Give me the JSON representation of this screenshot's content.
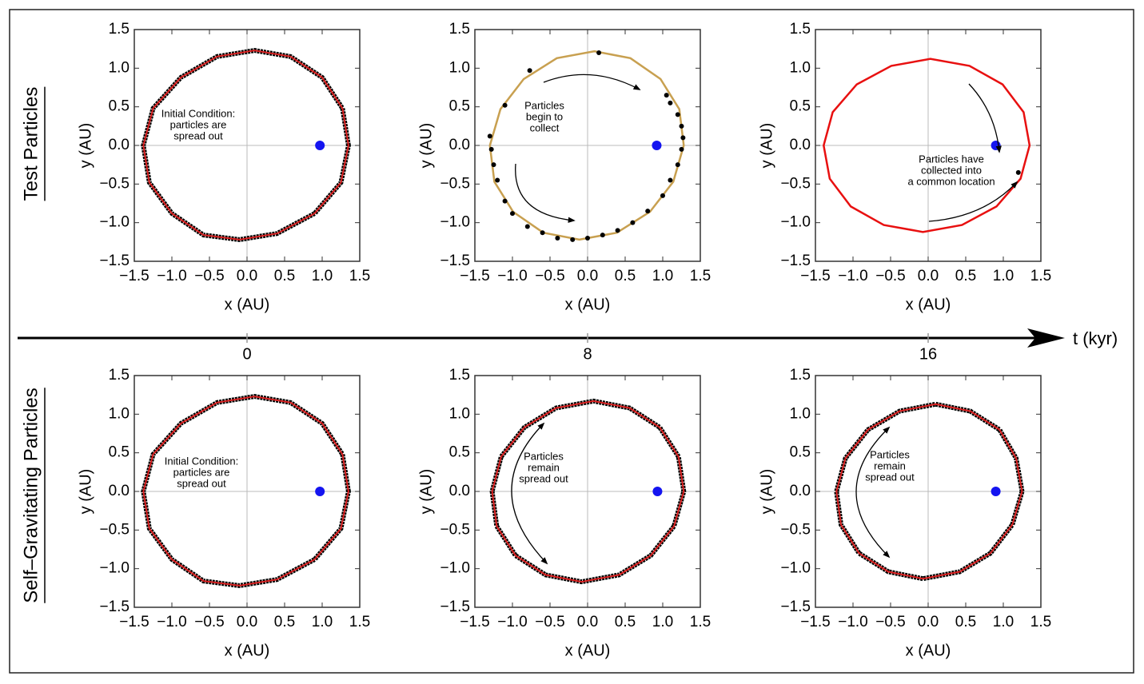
{
  "chart_data": [
    {
      "type": "orbit",
      "xlabel": "x (AU)",
      "ylabel": "y (AU)",
      "xlim": [
        -1.5,
        1.5
      ],
      "ylim": [
        -1.5,
        1.5
      ],
      "xticks": [
        {
          "value": -1.5,
          "label": "−1.5"
        },
        {
          "value": -1.0,
          "label": "−1.0"
        },
        {
          "value": -0.5,
          "label": "−0.5"
        },
        {
          "value": 0,
          "label": "0.0"
        },
        0.5,
        {
          "value": 1.0,
          "label": "1.0"
        },
        1.5
      ],
      "yticks": [
        {
          "value": -1.5,
          "label": "−1.5"
        },
        {
          "value": -1.0,
          "label": "−1.0"
        },
        {
          "value": -0.5,
          "label": "−0.5"
        },
        {
          "value": 0,
          "label": "0.0"
        },
        0.5,
        {
          "value": 1.0,
          "label": "1.0"
        },
        1.5
      ],
      "annotation": [
        "Initial Condition:",
        "particles are",
        "spread out"
      ],
      "series": [
        {
          "mode": "line",
          "color": "#d81e1e",
          "edgecolor": "#000000",
          "x": [
            1.35,
            1.27,
            1.0,
            0.58,
            0.1,
            -0.4,
            -0.88,
            -1.25,
            -1.38,
            -1.3,
            -1.0,
            -0.58,
            -0.1,
            0.4,
            0.9,
            1.25
          ],
          "values": [
            0,
            0.48,
            0.88,
            1.15,
            1.23,
            1.15,
            0.88,
            0.48,
            0,
            -0.48,
            -0.88,
            -1.16,
            -1.22,
            -1.14,
            -0.88,
            -0.48
          ]
        },
        {
          "mode": "points",
          "color": "#1414f0",
          "x": [
            0.97
          ],
          "values": [
            0
          ]
        }
      ]
    },
    {
      "type": "orbit",
      "xlabel": "x (AU)",
      "ylabel": "y (AU)",
      "xlim": [
        -1.5,
        1.5
      ],
      "ylim": [
        -1.5,
        1.5
      ],
      "xticks": [
        {
          "value": -1.5,
          "label": "−1.5"
        },
        {
          "value": -1.0,
          "label": "−1.0"
        },
        {
          "value": -0.5,
          "label": "−0.5"
        },
        {
          "value": 0,
          "label": "0.0"
        },
        0.5,
        {
          "value": 1.0,
          "label": "1.0"
        },
        1.5
      ],
      "yticks": [
        {
          "value": -1.5,
          "label": "−1.5"
        },
        {
          "value": -1.0,
          "label": "−1.0"
        },
        {
          "value": -0.5,
          "label": "−0.5"
        },
        {
          "value": 0,
          "label": "0.0"
        },
        0.5,
        {
          "value": 1.0,
          "label": "1.0"
        },
        1.5
      ],
      "annotation": [
        "Particles",
        "begin to",
        "collect"
      ],
      "series": [
        {
          "mode": "line",
          "color": "#c8a050",
          "x": [
            1.28,
            1.22,
            0.97,
            0.57,
            0.09,
            -0.41,
            -0.85,
            -1.16,
            -1.3,
            -1.24,
            -0.99,
            -0.59,
            -0.11,
            0.39,
            0.83,
            1.14
          ],
          "values": [
            0,
            0.47,
            0.86,
            1.13,
            1.22,
            1.13,
            0.86,
            0.47,
            0,
            -0.47,
            -0.86,
            -1.13,
            -1.22,
            -1.13,
            -0.86,
            -0.47
          ]
        },
        {
          "mode": "points",
          "color": "#000000",
          "x": [
            0.15,
            -0.77,
            -1.1,
            -1.3,
            -1.28,
            -1.25,
            -1.2,
            -1.1,
            -1.0,
            -0.8,
            -0.6,
            -0.4,
            -0.2,
            0.0,
            0.2,
            0.4,
            0.6,
            0.8,
            1.0,
            1.1,
            1.2,
            1.25,
            1.27,
            1.25,
            1.2,
            1.1,
            1.05
          ],
          "values": [
            1.2,
            0.97,
            0.52,
            0.12,
            -0.05,
            -0.25,
            -0.45,
            -0.72,
            -0.88,
            -1.05,
            -1.13,
            -1.2,
            -1.22,
            -1.2,
            -1.16,
            -1.1,
            -1.0,
            -0.85,
            -0.65,
            -0.45,
            -0.25,
            -0.05,
            0.1,
            0.25,
            0.4,
            0.55,
            0.65
          ]
        },
        {
          "mode": "points",
          "color": "#1414f0",
          "x": [
            0.92
          ],
          "values": [
            0
          ]
        }
      ]
    },
    {
      "type": "orbit",
      "xlabel": "x (AU)",
      "ylabel": "y (AU)",
      "xlim": [
        -1.5,
        1.5
      ],
      "ylim": [
        -1.5,
        1.5
      ],
      "xticks": [
        {
          "value": -1.5,
          "label": "−1.5"
        },
        {
          "value": -1.0,
          "label": "−1.0"
        },
        {
          "value": -0.5,
          "label": "−0.5"
        },
        {
          "value": 0,
          "label": "0.0"
        },
        0.5,
        {
          "value": 1.0,
          "label": "1.0"
        },
        1.5
      ],
      "yticks": [
        {
          "value": -1.5,
          "label": "−1.5"
        },
        {
          "value": -1.0,
          "label": "−1.0"
        },
        {
          "value": -0.5,
          "label": "−0.5"
        },
        {
          "value": 0,
          "label": "0.0"
        },
        0.5,
        {
          "value": 1.0,
          "label": "1.0"
        },
        1.5
      ],
      "annotation": [
        "Particles have",
        "collected into",
        "a common location"
      ],
      "series": [
        {
          "mode": "line",
          "color": "#e81010",
          "x": [
            1.35,
            1.27,
            0.99,
            0.55,
            0.03,
            -0.49,
            -0.95,
            -1.27,
            -1.39,
            -1.31,
            -1.03,
            -0.59,
            -0.07,
            0.45,
            0.91,
            1.23
          ],
          "values": [
            0,
            0.43,
            0.79,
            1.03,
            1.12,
            1.03,
            0.79,
            0.43,
            0,
            -0.43,
            -0.79,
            -1.03,
            -1.12,
            -1.03,
            -0.79,
            -0.43
          ]
        },
        {
          "mode": "points",
          "color": "#000000",
          "x": [
            1.2
          ],
          "values": [
            -0.35
          ]
        },
        {
          "mode": "points",
          "color": "#1414f0",
          "x": [
            0.9
          ],
          "values": [
            0
          ]
        }
      ]
    },
    {
      "type": "orbit",
      "xlabel": "x (AU)",
      "ylabel": "y (AU)",
      "xlim": [
        -1.5,
        1.5
      ],
      "ylim": [
        -1.5,
        1.5
      ],
      "xticks": [
        {
          "value": -1.5,
          "label": "−1.5"
        },
        {
          "value": -1.0,
          "label": "−1.0"
        },
        {
          "value": -0.5,
          "label": "−0.5"
        },
        {
          "value": 0,
          "label": "0.0"
        },
        0.5,
        {
          "value": 1.0,
          "label": "1.0"
        },
        1.5
      ],
      "yticks": [
        {
          "value": -1.5,
          "label": "−1.5"
        },
        {
          "value": -1.0,
          "label": "−1.0"
        },
        {
          "value": -0.5,
          "label": "−0.5"
        },
        {
          "value": 0,
          "label": "0.0"
        },
        0.5,
        {
          "value": 1.0,
          "label": "1.0"
        },
        1.5
      ],
      "annotation": [
        "Initial Condition:",
        "particles are",
        "spread out"
      ],
      "series": [
        {
          "mode": "line",
          "color": "#d81e1e",
          "edgecolor": "#000000",
          "x": [
            1.35,
            1.27,
            1.0,
            0.58,
            0.1,
            -0.4,
            -0.88,
            -1.25,
            -1.38,
            -1.3,
            -1.0,
            -0.58,
            -0.1,
            0.4,
            0.9,
            1.25
          ],
          "values": [
            0,
            0.48,
            0.88,
            1.15,
            1.23,
            1.15,
            0.88,
            0.48,
            0,
            -0.48,
            -0.88,
            -1.16,
            -1.22,
            -1.14,
            -0.88,
            -0.48
          ]
        },
        {
          "mode": "points",
          "color": "#1414f0",
          "x": [
            0.97
          ],
          "values": [
            0
          ]
        }
      ]
    },
    {
      "type": "orbit",
      "xlabel": "x (AU)",
      "ylabel": "y (AU)",
      "xlim": [
        -1.5,
        1.5
      ],
      "ylim": [
        -1.5,
        1.5
      ],
      "xticks": [
        {
          "value": -1.5,
          "label": "−1.5"
        },
        {
          "value": -1.0,
          "label": "−1.0"
        },
        {
          "value": -0.5,
          "label": "−0.5"
        },
        {
          "value": 0,
          "label": "0.0"
        },
        0.5,
        {
          "value": 1.0,
          "label": "1.0"
        },
        1.5
      ],
      "yticks": [
        {
          "value": -1.5,
          "label": "−1.5"
        },
        {
          "value": -1.0,
          "label": "−1.0"
        },
        {
          "value": -0.5,
          "label": "−0.5"
        },
        {
          "value": 0,
          "label": "0.0"
        },
        0.5,
        {
          "value": 1.0,
          "label": "1.0"
        },
        1.5
      ],
      "annotation": [
        "Particles",
        "remain",
        "spread out"
      ],
      "series": [
        {
          "mode": "line",
          "color": "#d81e1e",
          "edgecolor": "#000000",
          "x": [
            1.28,
            1.21,
            0.96,
            0.56,
            0.08,
            -0.42,
            -0.84,
            -1.15,
            -1.27,
            -1.21,
            -0.96,
            -0.56,
            -0.08,
            0.42,
            0.84,
            1.15
          ],
          "values": [
            0,
            0.45,
            0.83,
            1.08,
            1.17,
            1.08,
            0.83,
            0.45,
            0,
            -0.45,
            -0.83,
            -1.08,
            -1.17,
            -1.08,
            -0.83,
            -0.45
          ]
        },
        {
          "mode": "points",
          "color": "#1414f0",
          "x": [
            0.93
          ],
          "values": [
            0
          ]
        }
      ]
    },
    {
      "type": "orbit",
      "xlabel": "x (AU)",
      "ylabel": "y (AU)",
      "xlim": [
        -1.5,
        1.5
      ],
      "ylim": [
        -1.5,
        1.5
      ],
      "xticks": [
        {
          "value": -1.5,
          "label": "−1.5"
        },
        {
          "value": -1.0,
          "label": "−1.0"
        },
        {
          "value": -0.5,
          "label": "−0.5"
        },
        {
          "value": 0,
          "label": "0.0"
        },
        0.5,
        {
          "value": 1.0,
          "label": "1.0"
        },
        1.5
      ],
      "yticks": [
        {
          "value": -1.5,
          "label": "−1.5"
        },
        {
          "value": -1.0,
          "label": "−1.0"
        },
        {
          "value": -0.5,
          "label": "−0.5"
        },
        {
          "value": 0,
          "label": "0.0"
        },
        0.5,
        {
          "value": 1.0,
          "label": "1.0"
        },
        1.5
      ],
      "annotation": [
        "Particles",
        "remain",
        "spread out"
      ],
      "series": [
        {
          "mode": "line",
          "color": "#d81e1e",
          "edgecolor": "#000000",
          "x": [
            1.25,
            1.17,
            0.95,
            0.56,
            0.1,
            -0.38,
            -0.8,
            -1.1,
            -1.22,
            -1.16,
            -0.92,
            -0.53,
            -0.07,
            0.42,
            0.83,
            1.12
          ],
          "values": [
            0,
            0.43,
            0.8,
            1.04,
            1.13,
            1.04,
            0.8,
            0.43,
            0,
            -0.43,
            -0.8,
            -1.04,
            -1.13,
            -1.04,
            -0.8,
            -0.43
          ]
        },
        {
          "mode": "points",
          "color": "#1414f0",
          "x": [
            0.9
          ],
          "values": [
            0
          ]
        }
      ]
    }
  ],
  "row_labels": [
    "Test Particles",
    "Self–Gravitating Particles"
  ],
  "time_axis": {
    "label": "t (kyr)",
    "ticks": [
      0,
      8,
      16
    ]
  }
}
